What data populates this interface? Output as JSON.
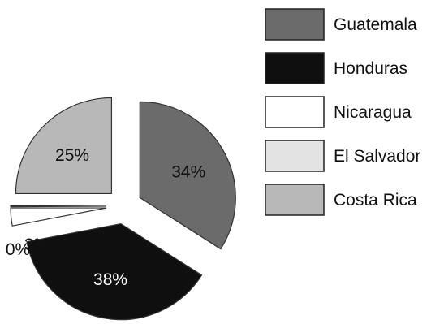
{
  "chart_data": {
    "type": "pie",
    "exploded": true,
    "categories": [
      "Guatemala",
      "Honduras",
      "Nicaragua",
      "El Salvador",
      "Costa Rica"
    ],
    "values": [
      34,
      38,
      3,
      0,
      25
    ],
    "data_labels": [
      "34%",
      "38%",
      "3%",
      "0%",
      "25%"
    ],
    "colors": [
      "#6b6b6b",
      "#0f0f0f",
      "#ffffff",
      "#e3e3e3",
      "#b8b8b8"
    ],
    "legend_position": "right",
    "grid": false
  }
}
